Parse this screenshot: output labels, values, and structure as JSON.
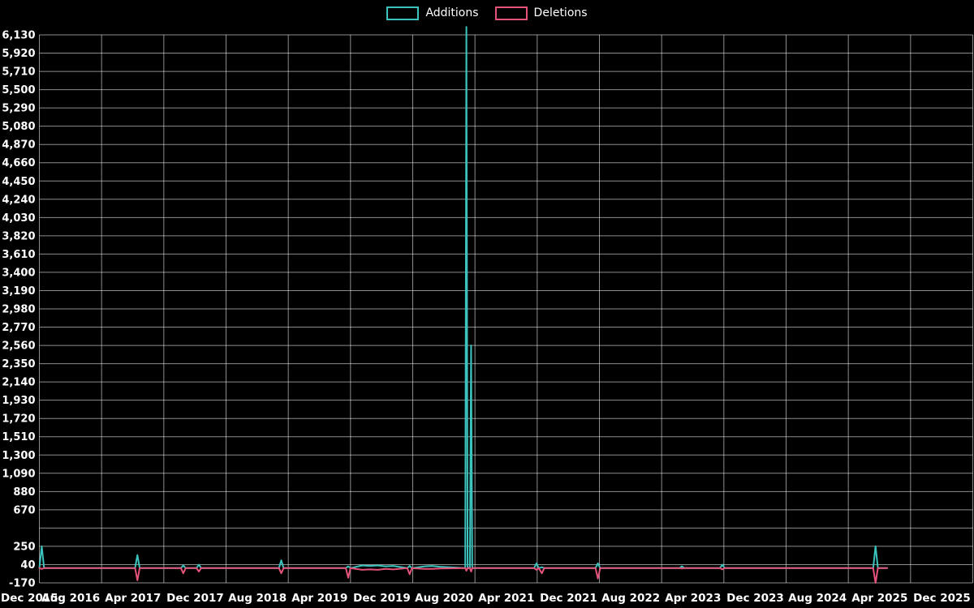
{
  "legend": {
    "items": [
      {
        "label": "Additions",
        "color": "#3cc3bd"
      },
      {
        "label": "Deletions",
        "color": "#e5537b"
      }
    ]
  },
  "chart_data": {
    "type": "line",
    "title": "",
    "background": "#000000",
    "text_color": "#ffffff",
    "grid": true,
    "legend_position": "top-center",
    "x_unit": "months since Dec 2015",
    "x_ticks": [
      {
        "t": 0,
        "label": "Dec 2015"
      },
      {
        "t": 8,
        "label": "Aug 2016"
      },
      {
        "t": 16,
        "label": "Apr 2017"
      },
      {
        "t": 24,
        "label": "Dec 2017"
      },
      {
        "t": 32,
        "label": "Aug 2018"
      },
      {
        "t": 40,
        "label": "Apr 2019"
      },
      {
        "t": 48,
        "label": "Dec 2019"
      },
      {
        "t": 56,
        "label": "Aug 2020"
      },
      {
        "t": 64,
        "label": "Apr 2021"
      },
      {
        "t": 72,
        "label": "Dec 2021"
      },
      {
        "t": 80,
        "label": "Aug 2022"
      },
      {
        "t": 88,
        "label": "Apr 2023"
      },
      {
        "t": 96,
        "label": "Dec 2023"
      },
      {
        "t": 104,
        "label": "Aug 2024"
      },
      {
        "t": 112,
        "label": "Apr 2025"
      },
      {
        "t": 120,
        "label": "Dec 2025"
      }
    ],
    "y_min": -170,
    "y_max": 6130,
    "y_tick_step": 210,
    "y_tick_values": [
      6130,
      5920,
      5710,
      5500,
      5290,
      5080,
      4870,
      4660,
      4450,
      4240,
      4030,
      3820,
      3610,
      3400,
      3190,
      2980,
      2770,
      2560,
      2350,
      2140,
      1930,
      1720,
      1510,
      1300,
      1090,
      880,
      670,
      460,
      250,
      40,
      -170
    ],
    "y_tick_labels": [
      "6,130",
      "5,920",
      "5,710",
      "5,500",
      "5,290",
      "5,080",
      "4,870",
      "4,660",
      "4,450",
      "4,240",
      "4,030",
      "3,820",
      "3,610",
      "3,400",
      "3,190",
      "2,980",
      "2,770",
      "2,560",
      "2,350",
      "2,140",
      "1,930",
      "1,720",
      "1,510",
      "1,300",
      "1,090",
      "880",
      "670",
      "",
      "250",
      "40",
      "-170"
    ],
    "series": [
      {
        "name": "Additions",
        "color": "#3cc3bd",
        "points": [
          [
            0,
            0
          ],
          [
            0.3,
            250
          ],
          [
            0.6,
            0
          ],
          [
            12.3,
            0
          ],
          [
            12.6,
            150
          ],
          [
            12.9,
            0
          ],
          [
            18.2,
            0
          ],
          [
            18.5,
            30
          ],
          [
            18.8,
            0
          ],
          [
            20.2,
            0
          ],
          [
            20.5,
            40
          ],
          [
            20.8,
            0
          ],
          [
            30.8,
            0
          ],
          [
            31.1,
            90
          ],
          [
            31.4,
            0
          ],
          [
            39.4,
            0
          ],
          [
            39.7,
            20
          ],
          [
            40,
            0
          ],
          [
            41.5,
            30
          ],
          [
            42.5,
            25
          ],
          [
            43.5,
            30
          ],
          [
            44.5,
            20
          ],
          [
            45.5,
            25
          ],
          [
            47.3,
            0
          ],
          [
            47.6,
            25
          ],
          [
            47.9,
            0
          ],
          [
            49.5,
            20
          ],
          [
            50.5,
            25
          ],
          [
            51.5,
            15
          ],
          [
            54.75,
            0
          ],
          [
            54.9,
            6220
          ],
          [
            55.05,
            0
          ],
          [
            55.35,
            0
          ],
          [
            55.5,
            2560
          ],
          [
            55.65,
            0
          ],
          [
            63.6,
            0
          ],
          [
            63.9,
            55
          ],
          [
            64.2,
            0
          ],
          [
            64.6,
            10
          ],
          [
            64.9,
            0
          ],
          [
            71.5,
            0
          ],
          [
            71.8,
            55
          ],
          [
            72.1,
            0
          ],
          [
            82.3,
            0
          ],
          [
            82.6,
            20
          ],
          [
            82.9,
            0
          ],
          [
            87.5,
            0
          ],
          [
            87.8,
            40
          ],
          [
            88.1,
            0
          ],
          [
            107.2,
            0
          ],
          [
            107.5,
            250
          ],
          [
            107.8,
            0
          ],
          [
            109,
            0
          ]
        ]
      },
      {
        "name": "Deletions",
        "color": "#e5537b",
        "points": [
          [
            0,
            0
          ],
          [
            0.3,
            -10
          ],
          [
            0.6,
            0
          ],
          [
            12.3,
            0
          ],
          [
            12.6,
            -140
          ],
          [
            12.9,
            0
          ],
          [
            18.2,
            0
          ],
          [
            18.5,
            -60
          ],
          [
            18.8,
            0
          ],
          [
            20.2,
            0
          ],
          [
            20.5,
            -40
          ],
          [
            20.8,
            0
          ],
          [
            30.8,
            0
          ],
          [
            31.1,
            -60
          ],
          [
            31.4,
            0
          ],
          [
            39.4,
            0
          ],
          [
            39.7,
            -110
          ],
          [
            40,
            0
          ],
          [
            41.5,
            -20
          ],
          [
            42.5,
            -15
          ],
          [
            43.5,
            -20
          ],
          [
            44.5,
            -10
          ],
          [
            45.5,
            -15
          ],
          [
            47.3,
            0
          ],
          [
            47.6,
            -70
          ],
          [
            47.9,
            0
          ],
          [
            49.5,
            -10
          ],
          [
            50.5,
            -10
          ],
          [
            51.5,
            -5
          ],
          [
            54.75,
            0
          ],
          [
            54.9,
            -30
          ],
          [
            55.05,
            0
          ],
          [
            55.35,
            0
          ],
          [
            55.5,
            -40
          ],
          [
            55.65,
            0
          ],
          [
            63.6,
            0
          ],
          [
            63.9,
            -20
          ],
          [
            64.2,
            0
          ],
          [
            64.6,
            -60
          ],
          [
            64.9,
            0
          ],
          [
            71.5,
            0
          ],
          [
            71.8,
            -120
          ],
          [
            72.1,
            0
          ],
          [
            82.3,
            0
          ],
          [
            82.6,
            -5
          ],
          [
            82.9,
            0
          ],
          [
            87.5,
            0
          ],
          [
            87.8,
            -15
          ],
          [
            88.1,
            0
          ],
          [
            107.2,
            0
          ],
          [
            107.5,
            -170
          ],
          [
            107.8,
            0
          ],
          [
            109,
            0
          ]
        ]
      }
    ]
  }
}
